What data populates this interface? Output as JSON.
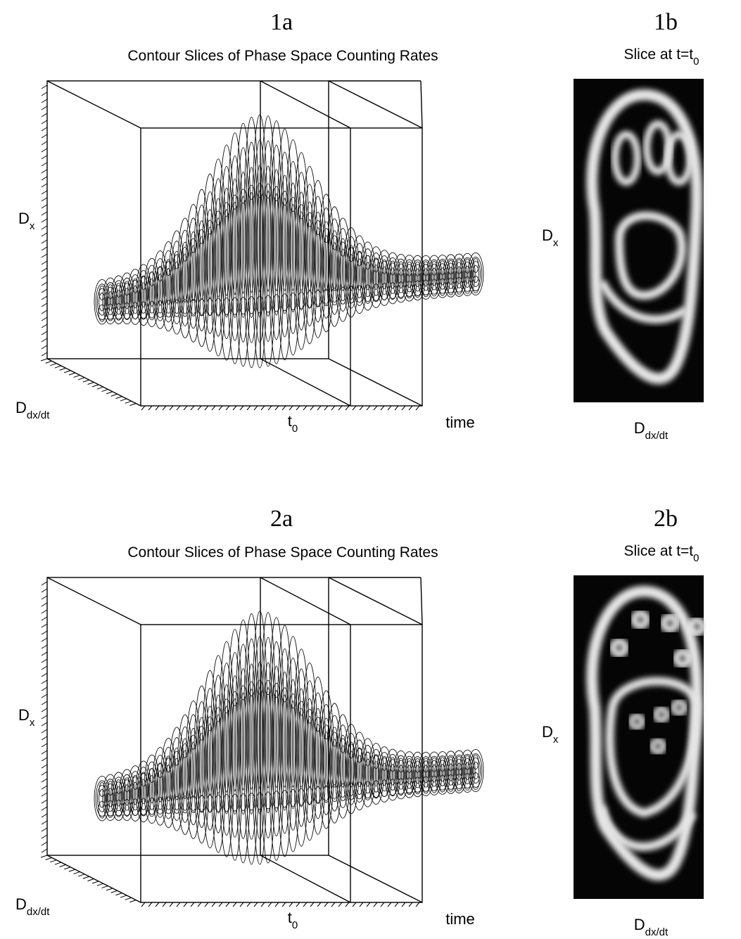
{
  "figures": [
    {
      "cube": {
        "label": "1a",
        "title": "Contour Slices of Phase Space Counting Rates",
        "y_axis": {
          "main": "D",
          "sub": "x"
        },
        "depth_axis": {
          "main": "D",
          "sub": "dx/dt"
        },
        "slice_label": {
          "main": "t",
          "sub": "0"
        },
        "x_axis": "time"
      },
      "slice": {
        "label": "1b",
        "title": {
          "main": "Slice at t=t",
          "sub": "0"
        },
        "y_axis": {
          "main": "D",
          "sub": "x"
        },
        "x_axis": {
          "main": "D",
          "sub": "dx/dt"
        }
      }
    },
    {
      "cube": {
        "label": "2a",
        "title": "Contour Slices of Phase Space Counting Rates",
        "y_axis": {
          "main": "D",
          "sub": "x"
        },
        "depth_axis": {
          "main": "D",
          "sub": "dx/dt"
        },
        "slice_label": {
          "main": "t",
          "sub": "0"
        },
        "x_axis": "time"
      },
      "slice": {
        "label": "2b",
        "title": {
          "main": "Slice at t=t",
          "sub": "0"
        },
        "y_axis": {
          "main": "D",
          "sub": "x"
        },
        "x_axis": {
          "main": "D",
          "sub": "dx/dt"
        }
      }
    }
  ]
}
